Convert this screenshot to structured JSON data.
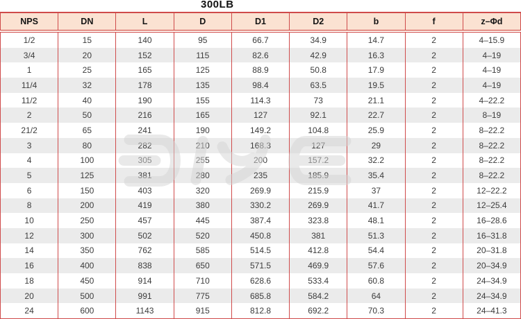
{
  "title": "300LB",
  "watermark": {
    "text": "DIYE"
  },
  "colors": {
    "border_red": "#cf4a4a",
    "header_bg": "#fbe2d2",
    "row_alt_bg": "#ebebeb",
    "text": "#3c3c3c",
    "watermark_gray": "#d5d5d5"
  },
  "table": {
    "columns": [
      "NPS",
      "DN",
      "L",
      "D",
      "D1",
      "D2",
      "b",
      "f",
      "z–Φd"
    ],
    "rows": [
      [
        "1/2",
        "15",
        "140",
        "95",
        "66.7",
        "34.9",
        "14.7",
        "2",
        "4–15.9"
      ],
      [
        "3/4",
        "20",
        "152",
        "115",
        "82.6",
        "42.9",
        "16.3",
        "2",
        "4–19"
      ],
      [
        "1",
        "25",
        "165",
        "125",
        "88.9",
        "50.8",
        "17.9",
        "2",
        "4–19"
      ],
      [
        "11/4",
        "32",
        "178",
        "135",
        "98.4",
        "63.5",
        "19.5",
        "2",
        "4–19"
      ],
      [
        "11/2",
        "40",
        "190",
        "155",
        "114.3",
        "73",
        "21.1",
        "2",
        "4–22.2"
      ],
      [
        "2",
        "50",
        "216",
        "165",
        "127",
        "92.1",
        "22.7",
        "2",
        "8–19"
      ],
      [
        "21/2",
        "65",
        "241",
        "190",
        "149.2",
        "104.8",
        "25.9",
        "2",
        "8–22.2"
      ],
      [
        "3",
        "80",
        "282",
        "210",
        "168.3",
        "127",
        "29",
        "2",
        "8–22.2"
      ],
      [
        "4",
        "100",
        "305",
        "255",
        "200",
        "157.2",
        "32.2",
        "2",
        "8–22.2"
      ],
      [
        "5",
        "125",
        "381",
        "280",
        "235",
        "185.9",
        "35.4",
        "2",
        "8–22.2"
      ],
      [
        "6",
        "150",
        "403",
        "320",
        "269.9",
        "215.9",
        "37",
        "2",
        "12–22.2"
      ],
      [
        "8",
        "200",
        "419",
        "380",
        "330.2",
        "269.9",
        "41.7",
        "2",
        "12–25.4"
      ],
      [
        "10",
        "250",
        "457",
        "445",
        "387.4",
        "323.8",
        "48.1",
        "2",
        "16–28.6"
      ],
      [
        "12",
        "300",
        "502",
        "520",
        "450.8",
        "381",
        "51.3",
        "2",
        "16–31.8"
      ],
      [
        "14",
        "350",
        "762",
        "585",
        "514.5",
        "412.8",
        "54.4",
        "2",
        "20–31.8"
      ],
      [
        "16",
        "400",
        "838",
        "650",
        "571.5",
        "469.9",
        "57.6",
        "2",
        "20–34.9"
      ],
      [
        "18",
        "450",
        "914",
        "710",
        "628.6",
        "533.4",
        "60.8",
        "2",
        "24–34.9"
      ],
      [
        "20",
        "500",
        "991",
        "775",
        "685.8",
        "584.2",
        "64",
        "2",
        "24–34.9"
      ],
      [
        "24",
        "600",
        "1143",
        "915",
        "812.8",
        "692.2",
        "70.3",
        "2",
        "24–41.3"
      ]
    ]
  }
}
